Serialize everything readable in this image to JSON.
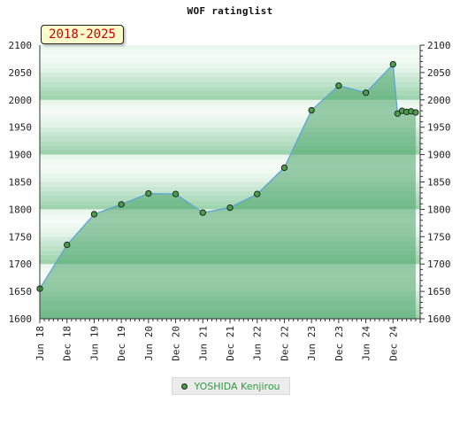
{
  "chart_data": {
    "type": "line",
    "title": "WOF ratinglist",
    "period_label": "2018-2025",
    "ylim": [
      1600,
      2100
    ],
    "y_ticks": [
      1600,
      1650,
      1700,
      1750,
      1800,
      1850,
      1900,
      1950,
      2000,
      2050,
      2100
    ],
    "x_range": [
      "2018-06",
      "2025-06"
    ],
    "x_ticks": [
      {
        "label": "Jun 18",
        "date": "2018-06"
      },
      {
        "label": "Dec 18",
        "date": "2018-12"
      },
      {
        "label": "Jun 19",
        "date": "2019-06"
      },
      {
        "label": "Dec 19",
        "date": "2019-12"
      },
      {
        "label": "Jun 20",
        "date": "2020-06"
      },
      {
        "label": "Dec 20",
        "date": "2020-12"
      },
      {
        "label": "Jun 21",
        "date": "2021-06"
      },
      {
        "label": "Dec 21",
        "date": "2021-12"
      },
      {
        "label": "Jun 22",
        "date": "2022-06"
      },
      {
        "label": "Dec 22",
        "date": "2022-12"
      },
      {
        "label": "Jun 23",
        "date": "2023-06"
      },
      {
        "label": "Dec 23",
        "date": "2023-12"
      },
      {
        "label": "Jun 24",
        "date": "2024-06"
      },
      {
        "label": "Dec 24",
        "date": "2024-12"
      }
    ],
    "series": [
      {
        "name": "YOSHIDA Kenjirou",
        "color": "#5ea3d8",
        "marker_color": "#4a9d4a",
        "fill_color": "#4aa46a",
        "points": [
          {
            "x": "2018-06",
            "y": 1655
          },
          {
            "x": "2018-12",
            "y": 1735
          },
          {
            "x": "2019-06",
            "y": 1791
          },
          {
            "x": "2019-12",
            "y": 1809
          },
          {
            "x": "2020-06",
            "y": 1829
          },
          {
            "x": "2020-12",
            "y": 1828
          },
          {
            "x": "2021-06",
            "y": 1794
          },
          {
            "x": "2021-12",
            "y": 1803
          },
          {
            "x": "2022-06",
            "y": 1828
          },
          {
            "x": "2022-12",
            "y": 1876
          },
          {
            "x": "2023-06",
            "y": 1981
          },
          {
            "x": "2023-12",
            "y": 2026
          },
          {
            "x": "2024-06",
            "y": 2013
          },
          {
            "x": "2024-12",
            "y": 2065
          },
          {
            "x": "2025-01",
            "y": 1975
          },
          {
            "x": "2025-02",
            "y": 1980
          },
          {
            "x": "2025-03",
            "y": 1978
          },
          {
            "x": "2025-04",
            "y": 1979
          },
          {
            "x": "2025-05",
            "y": 1977
          }
        ]
      }
    ],
    "legend_position": "bottom"
  }
}
